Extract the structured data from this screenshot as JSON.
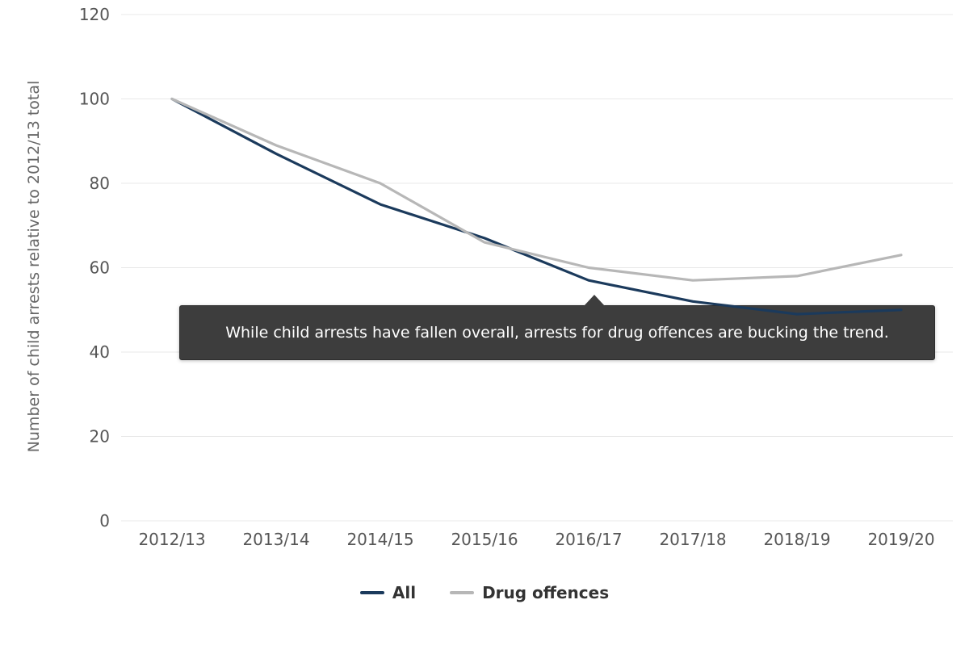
{
  "chart_data": {
    "type": "line",
    "title": "",
    "xlabel": "",
    "ylabel": "Number of child arrests relative to 2012/13 total",
    "ylim": [
      0,
      120
    ],
    "yticks": [
      0,
      20,
      40,
      60,
      80,
      100,
      120
    ],
    "grid": true,
    "legend_position": "bottom",
    "x": [
      "2012/13",
      "2013/14",
      "2014/15",
      "2015/16",
      "2016/17",
      "2017/18",
      "2018/19",
      "2019/20"
    ],
    "series": [
      {
        "name": "All",
        "color": "#1b3a5c",
        "values": [
          100,
          87,
          75,
          67,
          57,
          52,
          49,
          50
        ]
      },
      {
        "name": "Drug offences",
        "color": "#b7b7b7",
        "values": [
          100,
          89,
          80,
          66,
          60,
          57,
          58,
          63
        ]
      }
    ],
    "annotation": "While child arrests have fallen overall, arrests for drug offences are bucking the trend."
  },
  "colors": {
    "grid": "#e8e8e8",
    "axis_text": "#565656",
    "annotation_bg": "#3d3d3d",
    "annotation_text": "#ffffff"
  }
}
